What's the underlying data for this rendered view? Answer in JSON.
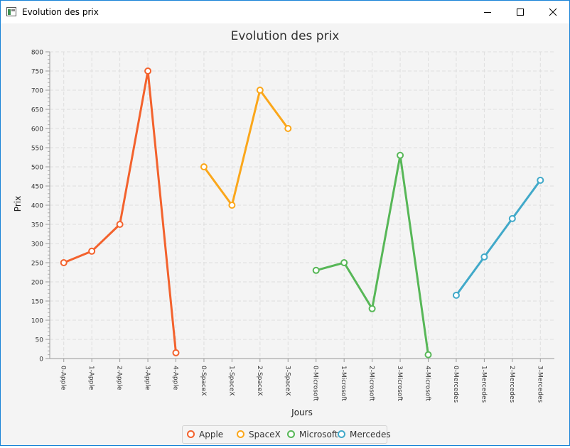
{
  "window": {
    "title": "Evolution des prix",
    "accent": "#1883d7"
  },
  "chart_data": {
    "type": "line",
    "title": "Evolution des prix",
    "xlabel": "Jours",
    "ylabel": "Prix",
    "ylim": [
      0,
      800
    ],
    "ytick_step": 50,
    "grid": true,
    "legend_position": "bottom",
    "categories": [
      "0-Apple",
      "1-Apple",
      "2-Apple",
      "3-Apple",
      "4-Apple",
      "0-SpaceX",
      "1-SpaceX",
      "2-SpaceX",
      "3-SpaceX",
      "0-Microsoft",
      "1-Microsoft",
      "2-Microsoft",
      "3-Microsoft",
      "4-Microsoft",
      "0-Mercedes",
      "1-Mercedes",
      "2-Mercedes",
      "3-Mercedes"
    ],
    "series": [
      {
        "name": "Apple",
        "color": "#f3622d",
        "x": [
          "0-Apple",
          "1-Apple",
          "2-Apple",
          "3-Apple",
          "4-Apple"
        ],
        "values": [
          250,
          280,
          350,
          750,
          15
        ]
      },
      {
        "name": "SpaceX",
        "color": "#fba71b",
        "x": [
          "0-SpaceX",
          "1-SpaceX",
          "2-SpaceX",
          "3-SpaceX"
        ],
        "values": [
          500,
          400,
          700,
          600
        ]
      },
      {
        "name": "Microsoft",
        "color": "#57b757",
        "x": [
          "0-Microsoft",
          "1-Microsoft",
          "2-Microsoft",
          "3-Microsoft",
          "4-Microsoft"
        ],
        "values": [
          230,
          250,
          130,
          530,
          10
        ]
      },
      {
        "name": "Mercedes",
        "color": "#41a9c9",
        "x": [
          "0-Mercedes",
          "1-Mercedes",
          "2-Mercedes",
          "3-Mercedes"
        ],
        "values": [
          165,
          265,
          365,
          465
        ]
      }
    ]
  }
}
